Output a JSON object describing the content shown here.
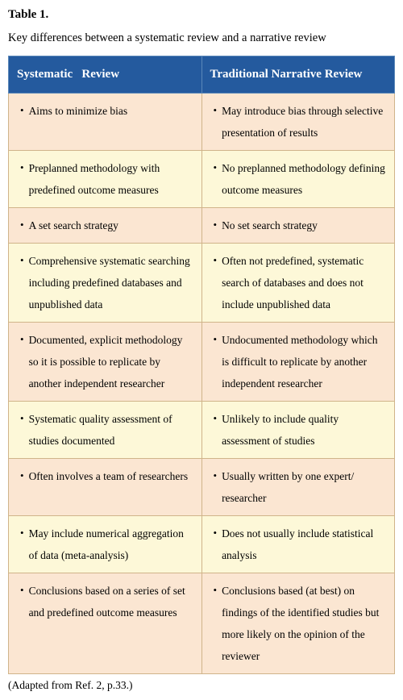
{
  "title": "Table 1.",
  "subtitle": "Key differences between a systematic review and a narrative review",
  "columns": [
    "Systematic   Review",
    "Traditional Narrative Review"
  ],
  "rows": [
    {
      "left": "Aims to minimize bias",
      "right": "May introduce bias through selective presentation of results",
      "color": "peach"
    },
    {
      "left": "Preplanned methodology with predefined outcome measures",
      "right": "No preplanned methodology defining outcome measures",
      "color": "yellow"
    },
    {
      "left": "A set search strategy",
      "right": "No set search strategy",
      "color": "peach"
    },
    {
      "left": "Comprehensive systematic searching including predefined databases and unpublished data",
      "right": "Often not predefined, systematic search of databases and does not include unpublished data",
      "color": "yellow"
    },
    {
      "left": "Documented, explicit methodology so it is possible to replicate by another independent researcher",
      "right": "Undocumented methodology which is difficult to replicate by another independent researcher",
      "color": "peach"
    },
    {
      "left": "Systematic quality assessment of studies documented",
      "right": "Unlikely to include quality assessment of studies",
      "color": "yellow"
    },
    {
      "left": "Often involves a team of researchers",
      "right": "Usually written by one expert/ researcher",
      "color": "peach"
    },
    {
      "left": "May include numerical aggregation of data (meta-analysis)",
      "right": "Does not usually include statistical analysis",
      "color": "yellow"
    },
    {
      "left": "Conclusions based on a series of set and predefined outcome measures",
      "right": "Conclusions based (at best) on findings of the identified studies but more likely on the opinion of the reviewer",
      "color": "peach"
    }
  ],
  "footnote": "(Adapted from Ref. 2, p.33.)",
  "colors": {
    "header_bg": "#245a9e",
    "header_text": "#ffffff",
    "header_border": "#5b88b9",
    "cell_border": "#d0b48a",
    "peach": "#fbe6d2",
    "yellow": "#fdf8d8"
  }
}
